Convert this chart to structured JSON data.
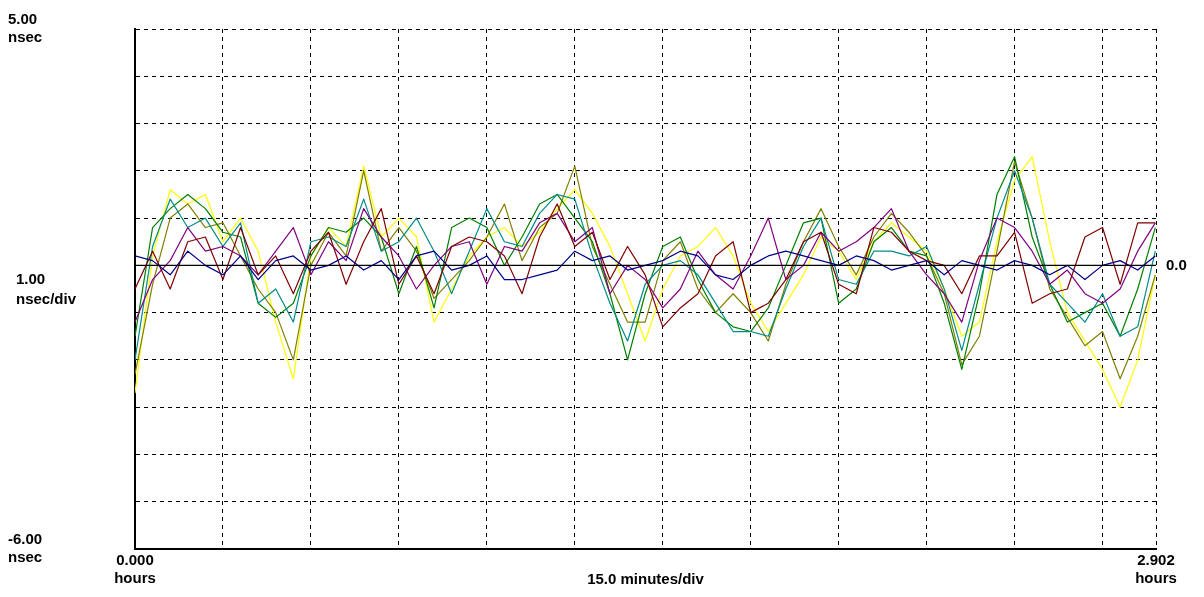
{
  "chart_data": {
    "type": "line",
    "x": [
      0,
      0.05,
      0.1,
      0.15,
      0.2,
      0.25,
      0.3,
      0.35,
      0.4,
      0.45,
      0.5,
      0.55,
      0.6,
      0.65,
      0.7,
      0.75,
      0.8,
      0.85,
      0.9,
      0.95,
      1.0,
      1.05,
      1.1,
      1.15,
      1.2,
      1.25,
      1.3,
      1.35,
      1.4,
      1.45,
      1.5,
      1.55,
      1.6,
      1.65,
      1.7,
      1.75,
      1.8,
      1.85,
      1.9,
      1.95,
      2.0,
      2.05,
      2.1,
      2.15,
      2.2,
      2.25,
      2.3,
      2.35,
      2.4,
      2.45,
      2.5,
      2.55,
      2.6,
      2.65,
      2.7,
      2.75,
      2.8,
      2.85,
      2.9
    ],
    "series": [
      {
        "color": "#00008b",
        "values": [
          0.2,
          0.1,
          -0.2,
          0.3,
          0,
          -0.2,
          0.2,
          -0.3,
          0.1,
          0.2,
          -0.1,
          0,
          0.2,
          -0.1,
          0.1,
          -0.3,
          0.2,
          0.3,
          -0.1,
          0,
          0.2,
          -0.3,
          -0.3,
          -0.2,
          -0.1,
          0.3,
          0.1,
          0.2,
          -0.1,
          0,
          0.1,
          0.3,
          0.2,
          -0.2,
          -0.3,
          0,
          0.2,
          0.3,
          0.2,
          0.1,
          0,
          0.2,
          0.1,
          -0.1,
          0,
          0.1,
          -0.2,
          0.1,
          0,
          -0.1,
          0.1,
          0,
          -0.2,
          0,
          -0.3,
          0,
          0.1,
          -0.1,
          0.2
        ]
      },
      {
        "color": "#800000",
        "values": [
          -0.5,
          0.3,
          -0.5,
          0.5,
          0.6,
          -0.3,
          0.8,
          -0.2,
          0.2,
          -0.6,
          0.3,
          0.7,
          -0.4,
          0.5,
          1.2,
          -0.4,
          0.2,
          -0.6,
          0.4,
          0.6,
          0.5,
          0.2,
          -0.6,
          0.6,
          1.3,
          0.4,
          0.7,
          -0.3,
          0.4,
          -0.2,
          -1.3,
          -0.9,
          -0.6,
          0.2,
          0.5,
          -1.0,
          -0.8,
          -0.3,
          0.5,
          0.7,
          -0.4,
          -0.6,
          0.8,
          0.7,
          0.3,
          0.1,
          0.0,
          -0.6,
          0.2,
          0.2,
          0.7,
          -0.8,
          -0.6,
          -0.5,
          0.6,
          0.8,
          -0.4,
          0.9,
          0.9
        ]
      },
      {
        "color": "#800080",
        "values": [
          -1.2,
          -0.3,
          0.1,
          0.8,
          0.3,
          0.4,
          0.2,
          -0.2,
          0.3,
          0.8,
          -0.2,
          0.5,
          0.1,
          1.2,
          0.6,
          0.2,
          -0.5,
          0.0,
          0.4,
          0.5,
          -0.4,
          0.4,
          0.3,
          0.9,
          1.1,
          0.5,
          0.8,
          -0.6,
          0.0,
          -0.3,
          -0.9,
          -0.5,
          0.3,
          -0.2,
          -0.5,
          0.2,
          1.0,
          -0.3,
          0.0,
          0.7,
          0.3,
          0.5,
          0.8,
          1.2,
          0.3,
          -0.2,
          -0.6,
          -1.2,
          0.1,
          1.0,
          0.8,
          0.3,
          -0.4,
          -0.1,
          -0.6,
          -0.8,
          -0.5,
          0.3,
          0.9
        ]
      },
      {
        "color": "#008b8b",
        "values": [
          -2.0,
          0.4,
          1.4,
          0.8,
          1.0,
          0.4,
          0.9,
          -0.8,
          -0.5,
          -1.2,
          0.5,
          0.6,
          0.4,
          1.4,
          0.3,
          0.5,
          1.0,
          0.3,
          -0.6,
          0.3,
          1.2,
          0.5,
          0.4,
          1.1,
          1.5,
          1.4,
          0.2,
          -0.8,
          -1.6,
          -0.4,
          0.0,
          0.1,
          -0.2,
          -0.8,
          -1.4,
          -1.4,
          -1.5,
          -0.5,
          0.4,
          1.0,
          -0.3,
          -0.4,
          0.3,
          0.3,
          0.2,
          0.4,
          -0.5,
          -1.8,
          -0.4,
          1.0,
          2.0,
          1.0,
          -0.4,
          -0.8,
          -1.2,
          -0.6,
          -1.5,
          -1.3,
          0.3
        ]
      },
      {
        "color": "#008000",
        "values": [
          -1.5,
          0.8,
          1.2,
          1.5,
          1.2,
          0.7,
          0.6,
          -0.8,
          -1.1,
          -0.8,
          0.2,
          0.8,
          0.7,
          1.0,
          0.6,
          -0.6,
          0.4,
          -0.9,
          0.8,
          1.0,
          0.8,
          0.0,
          0.6,
          1.3,
          1.5,
          1.0,
          0.5,
          -0.6,
          -2.0,
          -0.6,
          0.4,
          0.6,
          -0.3,
          -1.0,
          -1.3,
          -1.4,
          -0.9,
          0.0,
          0.9,
          1.0,
          -0.8,
          -0.5,
          0.5,
          0.8,
          0.3,
          0.2,
          -0.8,
          -2.2,
          -0.6,
          1.5,
          2.3,
          0.6,
          -0.4,
          -1.2,
          -1.0,
          -0.8,
          -1.5,
          -0.5,
          0.8
        ]
      },
      {
        "color": "#808000",
        "values": [
          -2.3,
          -0.4,
          1.0,
          1.3,
          0.8,
          0.9,
          0.2,
          -0.5,
          -1.0,
          -2.0,
          0.0,
          0.7,
          0.2,
          2.0,
          0.3,
          0.8,
          0.3,
          -0.7,
          -0.3,
          0.1,
          0.6,
          1.3,
          0.1,
          0.8,
          1.1,
          2.1,
          0.4,
          -0.4,
          -1.2,
          -1.2,
          0.1,
          0.5,
          -0.5,
          -1.0,
          -0.6,
          -1.0,
          -1.6,
          -0.4,
          0.5,
          1.2,
          0.4,
          -0.2,
          0.6,
          1.1,
          0.7,
          0.2,
          -0.6,
          -2.1,
          -1.5,
          0.3,
          2.2,
          1.0,
          -0.5,
          -1.1,
          -1.7,
          -1.4,
          -2.4,
          -1.5,
          -0.2
        ]
      },
      {
        "color": "#ffff00",
        "values": [
          -2.7,
          0.2,
          1.6,
          1.3,
          1.5,
          0.5,
          1.0,
          0.3,
          -1.2,
          -2.4,
          0.2,
          0.8,
          0.4,
          2.1,
          0.6,
          1.0,
          0.6,
          -1.2,
          -0.5,
          0.2,
          0.6,
          0.8,
          0.4,
          0.7,
          1.2,
          1.6,
          1.1,
          0.4,
          -0.6,
          -1.6,
          -0.5,
          0.2,
          0.4,
          0.8,
          0.2,
          -0.8,
          -1.4,
          -0.8,
          -0.2,
          0.6,
          0.3,
          -0.3,
          0.5,
          0.9,
          0.6,
          0.3,
          -0.5,
          -1.5,
          -1.2,
          0.5,
          1.8,
          2.3,
          0.5,
          -1.0,
          -1.6,
          -2.2,
          -3.0,
          -2.0,
          -0.2
        ]
      }
    ],
    "xlabel": "15.0 minutes/div",
    "xlim": [
      0,
      2.902
    ],
    "xticks": [
      {
        "value": 0,
        "label": "0.000\nhours"
      },
      {
        "value": 0.25,
        "label": null
      },
      {
        "value": 0.5,
        "label": null
      },
      {
        "value": 0.75,
        "label": null
      },
      {
        "value": 1.0,
        "label": null
      },
      {
        "value": 1.25,
        "label": null
      },
      {
        "value": 1.5,
        "label": null
      },
      {
        "value": 1.75,
        "label": null
      },
      {
        "value": 2.0,
        "label": null
      },
      {
        "value": 2.25,
        "label": null
      },
      {
        "value": 2.5,
        "label": null
      },
      {
        "value": 2.75,
        "label": null
      },
      {
        "value": 2.902,
        "label": "2.902\nhours"
      }
    ],
    "ylim": [
      -6,
      5
    ],
    "yticks": [
      {
        "value": -6,
        "label": "-6.00\nnsec"
      },
      {
        "value": -5,
        "label": null
      },
      {
        "value": -4,
        "label": null
      },
      {
        "value": -3,
        "label": null
      },
      {
        "value": -2,
        "label": null
      },
      {
        "value": -1,
        "label": null
      },
      {
        "value": 0,
        "label": null
      },
      {
        "value": 1,
        "label": null
      },
      {
        "value": 2,
        "label": null
      },
      {
        "value": 3,
        "label": null
      },
      {
        "value": 4,
        "label": null
      },
      {
        "value": 5,
        "label": "5.00\nnsec"
      }
    ],
    "ref_lines": [
      {
        "axis": "y",
        "value": 0,
        "label": "0.0",
        "color": "#000000"
      }
    ],
    "annotations": [
      "1.00\nnsec/div"
    ],
    "grid": true,
    "line_style": "solid"
  }
}
